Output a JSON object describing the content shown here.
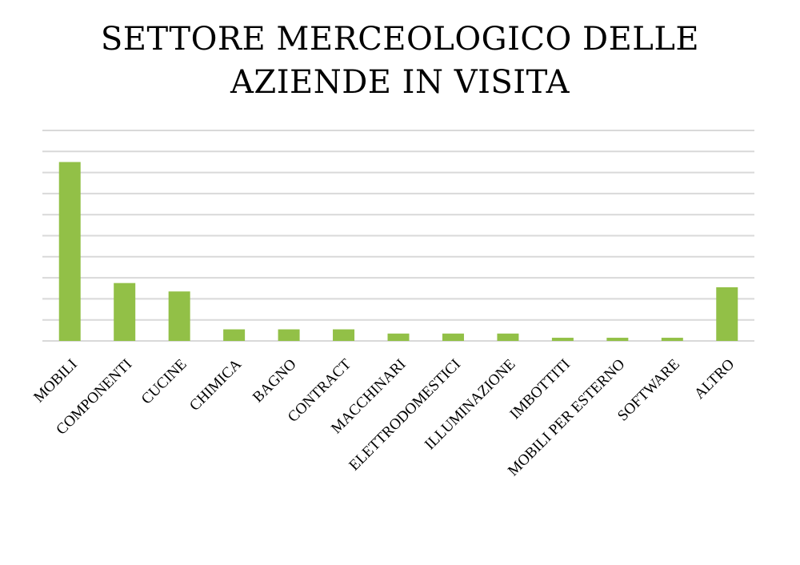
{
  "chart_data": {
    "type": "bar",
    "title_lines": [
      "SETTORE MERCEOLOGICO DELLE",
      "AZIENDE IN VISITA"
    ],
    "categories": [
      "MOBILI",
      "COMPONENTI",
      "CUCINE",
      "CHIMICA",
      "BAGNO",
      "CONTRACT",
      "MACCHINARI",
      "ELETTRODOMESTICI",
      "ILLUMINAZIONE",
      "IMBOTTITI",
      "MOBILI PER ESTERNO",
      "SOFTWARE",
      "ALTRO"
    ],
    "values": [
      17,
      5.5,
      4.7,
      1.1,
      1.1,
      1.1,
      0.7,
      0.7,
      0.7,
      0.3,
      0.3,
      0.3,
      5.1
    ],
    "ylim": [
      0,
      20
    ],
    "y_gridline_step": 2,
    "grid": true,
    "legend": "none",
    "colors": {
      "bar": "#92c047",
      "grid": "#d9d9d9",
      "axis": "#d9d9d9"
    }
  }
}
